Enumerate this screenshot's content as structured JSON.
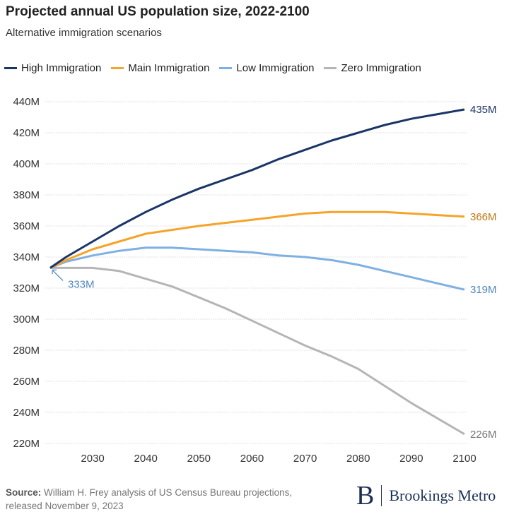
{
  "chart_data": {
    "type": "line",
    "title": "Projected annual US population size, 2022-2100",
    "subtitle": "Alternative immigration scenarios",
    "xlabel": "",
    "ylabel": "",
    "xlim": [
      2022,
      2100
    ],
    "ylim": [
      220,
      440
    ],
    "x_ticks": [
      "2030",
      "2040",
      "2050",
      "2060",
      "2070",
      "2080",
      "2090",
      "2100"
    ],
    "y_ticks": [
      "440M",
      "420M",
      "400M",
      "380M",
      "360M",
      "340M",
      "320M",
      "300M",
      "280M",
      "260M",
      "240M",
      "220M"
    ],
    "grid": true,
    "legend": "top",
    "x": [
      2022,
      2025,
      2030,
      2035,
      2040,
      2045,
      2050,
      2055,
      2060,
      2065,
      2070,
      2075,
      2080,
      2085,
      2090,
      2095,
      2100
    ],
    "series": [
      {
        "name": "High Immigration",
        "color": "#1a3566",
        "label_color": "#1a3566",
        "end_label": "435M",
        "values": [
          333,
          340,
          350,
          360,
          369,
          377,
          384,
          390,
          396,
          403,
          409,
          415,
          420,
          425,
          429,
          432,
          435
        ]
      },
      {
        "name": "Main Immigration",
        "color": "#f5a42a",
        "label_color": "#c07a14",
        "end_label": "366M",
        "values": [
          333,
          338,
          345,
          350,
          355,
          357.5,
          360,
          362,
          364,
          366,
          368,
          369,
          369,
          369,
          368,
          367,
          366
        ]
      },
      {
        "name": "Low Immigration",
        "color": "#7fb0e2",
        "label_color": "#4f86c0",
        "end_label": "319M",
        "values": [
          333,
          337,
          341,
          344,
          346,
          346,
          345,
          344,
          343,
          341,
          340,
          338,
          335,
          331,
          327,
          323,
          319
        ]
      },
      {
        "name": "Zero Immigration",
        "color": "#b5b5b5",
        "label_color": "#777777",
        "end_label": "226M",
        "values": [
          333,
          333,
          333,
          331,
          326,
          321,
          314,
          307,
          299,
          291,
          283,
          276,
          268,
          257,
          246,
          236,
          226
        ]
      }
    ],
    "annotations": [
      {
        "text": "333M",
        "x": 2022,
        "y": 333,
        "color": "#4f86c0"
      }
    ]
  },
  "source": {
    "label": "Source:",
    "text": "William H. Frey analysis of US Census Bureau projections, released November 9, 2023"
  },
  "logo": {
    "mark": "B",
    "text": "Brookings Metro"
  }
}
